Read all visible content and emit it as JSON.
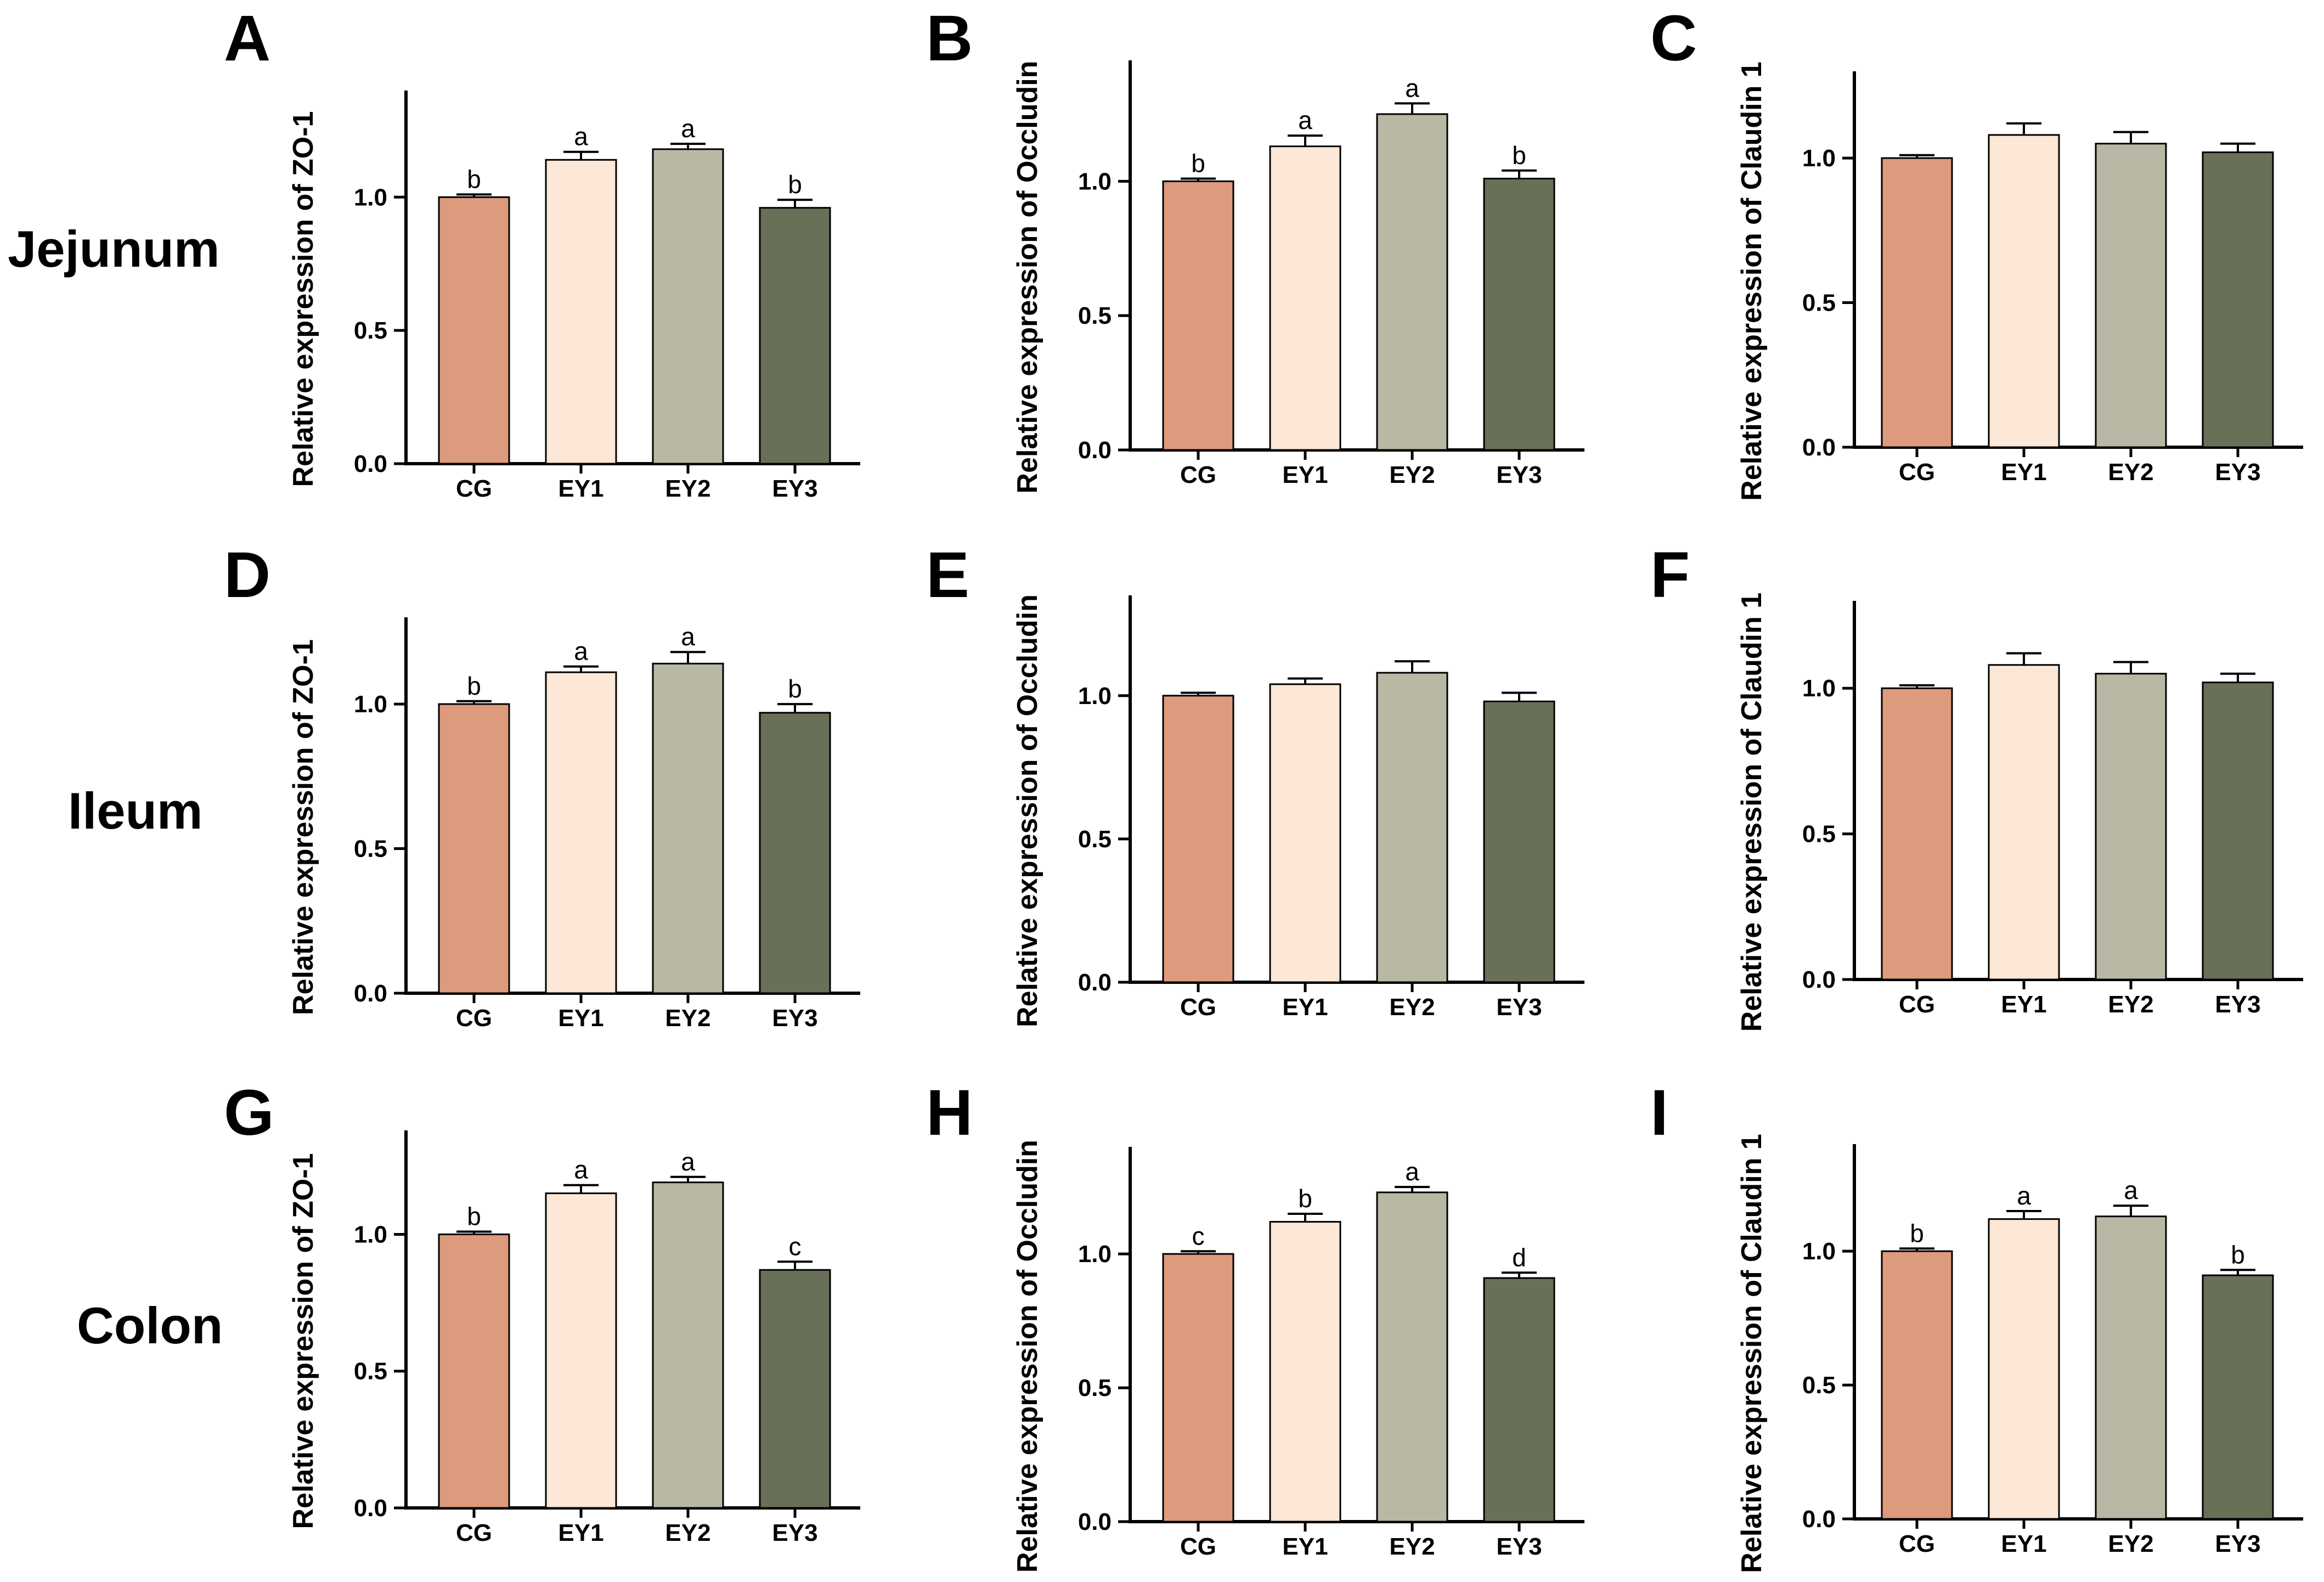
{
  "row_labels": [
    "Jejunum",
    "Ileum",
    "Colon"
  ],
  "colors": {
    "CG": "#dd9a7d",
    "EY1": "#fde7d6",
    "EY2": "#b9b8a4",
    "EY3": "#687058",
    "axis": "#000000"
  },
  "chart_data": [
    {
      "panel": "A",
      "type": "bar",
      "ylabel": "Relative expression of ZO-1",
      "categories": [
        "CG",
        "EY1",
        "EY2",
        "EY3"
      ],
      "values": [
        1.0,
        1.14,
        1.18,
        0.96
      ],
      "errors": [
        0.01,
        0.03,
        0.02,
        0.03
      ],
      "sig": [
        "b",
        "a",
        "a",
        "b"
      ],
      "ylim": [
        0,
        1.4
      ],
      "yticks": [
        0.0,
        0.5,
        1.0
      ],
      "ytick_labels": [
        "0.0",
        "0.5",
        "1.0"
      ]
    },
    {
      "panel": "B",
      "type": "bar",
      "ylabel": "Relative expression of Occludin",
      "categories": [
        "CG",
        "EY1",
        "EY2",
        "EY3"
      ],
      "values": [
        1.0,
        1.13,
        1.25,
        1.01
      ],
      "errors": [
        0.01,
        0.04,
        0.04,
        0.03
      ],
      "sig": [
        "b",
        "a",
        "a",
        "b"
      ],
      "ylim": [
        0,
        1.45
      ],
      "yticks": [
        0.0,
        0.5,
        1.0
      ],
      "ytick_labels": [
        "0.0",
        "0.5",
        "1.0"
      ]
    },
    {
      "panel": "C",
      "type": "bar",
      "ylabel": "Relative expression of Claudin 1",
      "categories": [
        "CG",
        "EY1",
        "EY2",
        "EY3"
      ],
      "values": [
        1.0,
        1.08,
        1.05,
        1.02
      ],
      "errors": [
        0.01,
        0.04,
        0.04,
        0.03
      ],
      "sig": [
        "",
        "",
        "",
        ""
      ],
      "ylim": [
        0,
        1.3
      ],
      "yticks": [
        0.0,
        0.5,
        1.0
      ],
      "ytick_labels": [
        "0.0",
        "0.5",
        "1.0"
      ]
    },
    {
      "panel": "D",
      "type": "bar",
      "ylabel": "Relative expression of ZO-1",
      "categories": [
        "CG",
        "EY1",
        "EY2",
        "EY3"
      ],
      "values": [
        1.0,
        1.11,
        1.14,
        0.97
      ],
      "errors": [
        0.01,
        0.02,
        0.04,
        0.03
      ],
      "sig": [
        "b",
        "a",
        "a",
        "b"
      ],
      "ylim": [
        0,
        1.3
      ],
      "yticks": [
        0.0,
        0.5,
        1.0
      ],
      "ytick_labels": [
        "0.0",
        "0.5",
        "1.0"
      ]
    },
    {
      "panel": "E",
      "type": "bar",
      "ylabel": "Relative expression of Occludin",
      "categories": [
        "CG",
        "EY1",
        "EY2",
        "EY3"
      ],
      "values": [
        1.0,
        1.04,
        1.08,
        0.98
      ],
      "errors": [
        0.01,
        0.02,
        0.04,
        0.03
      ],
      "sig": [
        "",
        "",
        "",
        ""
      ],
      "ylim": [
        0,
        1.35
      ],
      "yticks": [
        0.0,
        0.5,
        1.0
      ],
      "ytick_labels": [
        "0.0",
        "0.5",
        "1.0"
      ]
    },
    {
      "panel": "F",
      "type": "bar",
      "ylabel": "Relative expression of Claudin 1",
      "categories": [
        "CG",
        "EY1",
        "EY2",
        "EY3"
      ],
      "values": [
        1.0,
        1.08,
        1.05,
        1.02
      ],
      "errors": [
        0.01,
        0.04,
        0.04,
        0.03
      ],
      "sig": [
        "",
        "",
        "",
        ""
      ],
      "ylim": [
        0,
        1.3
      ],
      "yticks": [
        0.0,
        0.5,
        1.0
      ],
      "ytick_labels": [
        "0.0",
        "0.5",
        "1.0"
      ]
    },
    {
      "panel": "G",
      "type": "bar",
      "ylabel": "Relative expression of ZO-1",
      "categories": [
        "CG",
        "EY1",
        "EY2",
        "EY3"
      ],
      "values": [
        1.0,
        1.15,
        1.19,
        0.87
      ],
      "errors": [
        0.01,
        0.03,
        0.02,
        0.03
      ],
      "sig": [
        "b",
        "a",
        "a",
        "c"
      ],
      "ylim": [
        0,
        1.38
      ],
      "yticks": [
        0.0,
        0.5,
        1.0
      ],
      "ytick_labels": [
        "0.0",
        "0.5",
        "1.0"
      ]
    },
    {
      "panel": "H",
      "type": "bar",
      "ylabel": "Relative expression of Occludin",
      "categories": [
        "CG",
        "EY1",
        "EY2",
        "EY3"
      ],
      "values": [
        1.0,
        1.12,
        1.23,
        0.91
      ],
      "errors": [
        0.01,
        0.03,
        0.02,
        0.02
      ],
      "sig": [
        "c",
        "b",
        "a",
        "d"
      ],
      "ylim": [
        0,
        1.4
      ],
      "yticks": [
        0.0,
        0.5,
        1.0
      ],
      "ytick_labels": [
        "0.0",
        "0.5",
        "1.0"
      ]
    },
    {
      "panel": "I",
      "type": "bar",
      "ylabel": "Relative expression of Claudin 1",
      "categories": [
        "CG",
        "EY1",
        "EY2",
        "EY3"
      ],
      "values": [
        1.0,
        1.12,
        1.13,
        0.91
      ],
      "errors": [
        0.01,
        0.03,
        0.04,
        0.02
      ],
      "sig": [
        "b",
        "a",
        "a",
        "b"
      ],
      "ylim": [
        0,
        1.4
      ],
      "yticks": [
        0.0,
        0.5,
        1.0
      ],
      "ytick_labels": [
        "0.0",
        "0.5",
        "1.0"
      ]
    }
  ]
}
